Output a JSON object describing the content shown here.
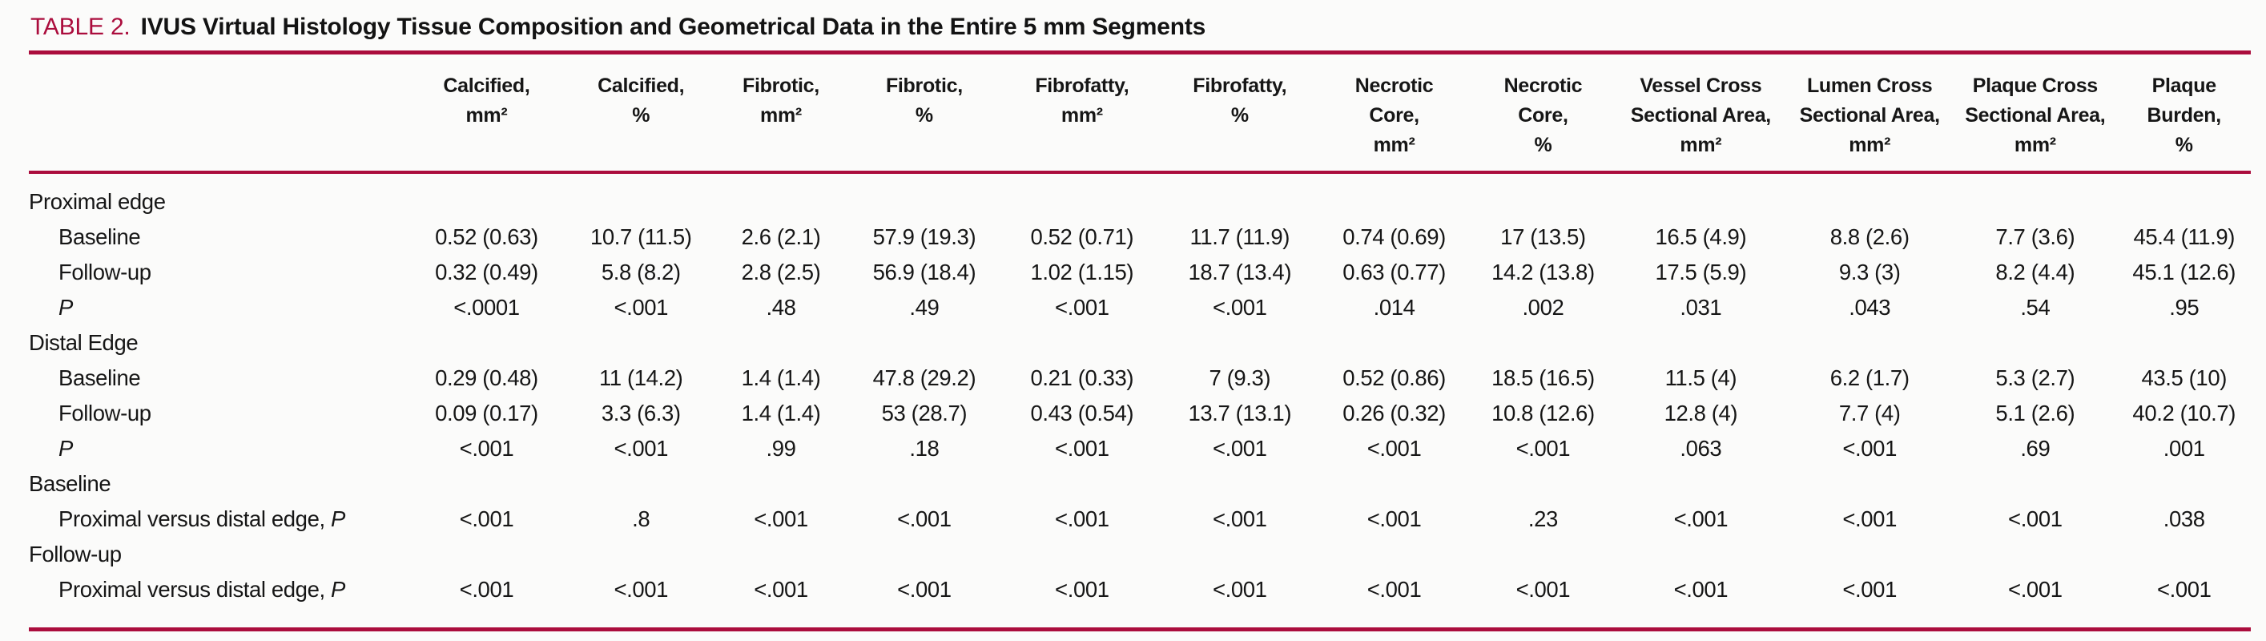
{
  "title": {
    "label": "TABLE 2.",
    "text": "IVUS Virtual Histology Tissue Composition and Geometrical Data in the Entire 5 mm Segments"
  },
  "colors": {
    "accent": "#ab0d3d",
    "title_number": "#b51743",
    "text": "#161616",
    "background": "#fbfbfa"
  },
  "table": {
    "columns": [
      {
        "lines": [
          "Calcified,",
          "mm²"
        ]
      },
      {
        "lines": [
          "Calcified,",
          "%"
        ]
      },
      {
        "lines": [
          "Fibrotic,",
          "mm²"
        ]
      },
      {
        "lines": [
          "Fibrotic,",
          "%"
        ]
      },
      {
        "lines": [
          "Fibrofatty,",
          "mm²"
        ]
      },
      {
        "lines": [
          "Fibrofatty,",
          "%"
        ]
      },
      {
        "lines": [
          "Necrotic",
          "Core,",
          "mm²"
        ]
      },
      {
        "lines": [
          "Necrotic",
          "Core,",
          "%"
        ]
      },
      {
        "lines": [
          "Vessel Cross",
          "Sectional Area,",
          "mm²"
        ]
      },
      {
        "lines": [
          "Lumen Cross",
          "Sectional Area,",
          "mm²"
        ]
      },
      {
        "lines": [
          "Plaque Cross",
          "Sectional Area,",
          "mm²"
        ]
      },
      {
        "lines": [
          "Plaque",
          "Burden,",
          "%"
        ]
      }
    ],
    "rows": [
      {
        "section": true,
        "label": "Proximal edge",
        "p": "",
        "values": []
      },
      {
        "section": false,
        "label": "Baseline",
        "p": "",
        "values": [
          "0.52 (0.63)",
          "10.7 (11.5)",
          "2.6 (2.1)",
          "57.9 (19.3)",
          "0.52 (0.71)",
          "11.7 (11.9)",
          "0.74 (0.69)",
          "17 (13.5)",
          "16.5 (4.9)",
          "8.8 (2.6)",
          "7.7 (3.6)",
          "45.4 (11.9)"
        ]
      },
      {
        "section": false,
        "label": "Follow-up",
        "p": "",
        "values": [
          "0.32 (0.49)",
          "5.8 (8.2)",
          "2.8 (2.5)",
          "56.9 (18.4)",
          "1.02 (1.15)",
          "18.7 (13.4)",
          "0.63 (0.77)",
          "14.2 (13.8)",
          "17.5 (5.9)",
          "9.3 (3)",
          "8.2 (4.4)",
          "45.1 (12.6)"
        ]
      },
      {
        "section": false,
        "label": "",
        "p": "P",
        "values": [
          "<.0001",
          "<.001",
          ".48",
          ".49",
          "<.001",
          "<.001",
          ".014",
          ".002",
          ".031",
          ".043",
          ".54",
          ".95"
        ]
      },
      {
        "section": true,
        "label": "Distal Edge",
        "p": "",
        "values": []
      },
      {
        "section": false,
        "label": "Baseline",
        "p": "",
        "values": [
          "0.29 (0.48)",
          "11 (14.2)",
          "1.4 (1.4)",
          "47.8 (29.2)",
          "0.21 (0.33)",
          "7 (9.3)",
          "0.52 (0.86)",
          "18.5 (16.5)",
          "11.5 (4)",
          "6.2 (1.7)",
          "5.3 (2.7)",
          "43.5 (10)"
        ]
      },
      {
        "section": false,
        "label": "Follow-up",
        "p": "",
        "values": [
          "0.09 (0.17)",
          "3.3 (6.3)",
          "1.4 (1.4)",
          "53 (28.7)",
          "0.43 (0.54)",
          "13.7 (13.1)",
          "0.26 (0.32)",
          "10.8 (12.6)",
          "12.8 (4)",
          "7.7 (4)",
          "5.1 (2.6)",
          "40.2 (10.7)"
        ]
      },
      {
        "section": false,
        "label": "",
        "p": "P",
        "values": [
          "<.001",
          "<.001",
          ".99",
          ".18",
          "<.001",
          "<.001",
          "<.001",
          "<.001",
          ".063",
          "<.001",
          ".69",
          ".001"
        ]
      },
      {
        "section": true,
        "label": "Baseline",
        "p": "",
        "values": []
      },
      {
        "section": false,
        "label": "Proximal versus distal edge,",
        "p": "P",
        "values": [
          "<.001",
          ".8",
          "<.001",
          "<.001",
          "<.001",
          "<.001",
          "<.001",
          ".23",
          "<.001",
          "<.001",
          "<.001",
          ".038"
        ]
      },
      {
        "section": true,
        "label": "Follow-up",
        "p": "",
        "values": []
      },
      {
        "section": false,
        "label": "Proximal versus distal edge,",
        "p": "P",
        "values": [
          "<.001",
          "<.001",
          "<.001",
          "<.001",
          "<.001",
          "<.001",
          "<.001",
          "<.001",
          "<.001",
          "<.001",
          "<.001",
          "<.001"
        ]
      }
    ]
  }
}
